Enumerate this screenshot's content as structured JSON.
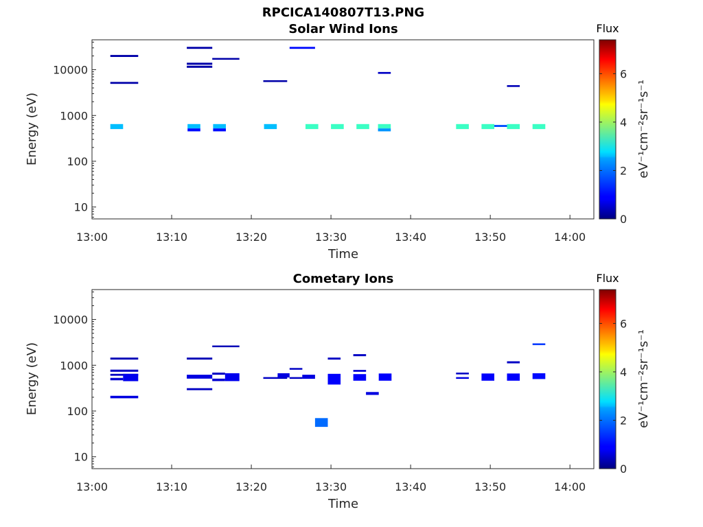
{
  "figure": {
    "title": "RPCICA140807T13.PNG"
  },
  "colorbar": {
    "title": "Flux",
    "unit_label": "eV⁻¹cm⁻²sr⁻¹s⁻¹",
    "min": 0,
    "max": 7.4,
    "ticks": [
      "0",
      "2",
      "4",
      "6"
    ],
    "colormap": "jet"
  },
  "chart_data": [
    {
      "type": "heatmap",
      "title": "Solar Wind Ions",
      "xlabel": "Time",
      "ylabel": "Energy (eV)",
      "x_ticks": [
        "13:00",
        "13:10",
        "13:20",
        "13:30",
        "13:40",
        "13:50",
        "14:00"
      ],
      "xlim_minutes": [
        0,
        63
      ],
      "y_scale": "log",
      "ylim": [
        5.5,
        45000
      ],
      "y_ticks": [
        "10",
        "100",
        "1000",
        "10000"
      ],
      "cells": [
        {
          "t0": 2.3,
          "t1": 5.8,
          "e0": 19000,
          "e1": 21000,
          "flux": 0.3
        },
        {
          "t0": 2.3,
          "t1": 5.8,
          "e0": 4900,
          "e1": 5400,
          "flux": 0.3
        },
        {
          "t0": 2.3,
          "t1": 3.9,
          "e0": 505,
          "e1": 650,
          "flux": 2.3
        },
        {
          "t0": 11.9,
          "t1": 15.1,
          "e0": 28500,
          "e1": 31500,
          "flux": 0.3
        },
        {
          "t0": 11.9,
          "t1": 15.1,
          "e0": 12800,
          "e1": 14200,
          "flux": 0.3
        },
        {
          "t0": 11.9,
          "t1": 15.1,
          "e0": 11000,
          "e1": 12200,
          "flux": 0.3
        },
        {
          "t0": 12.0,
          "t1": 13.6,
          "e0": 520,
          "e1": 650,
          "flux": 2.3
        },
        {
          "t0": 12.0,
          "t1": 13.6,
          "e0": 450,
          "e1": 520,
          "flux": 1.0
        },
        {
          "t0": 15.1,
          "t1": 18.5,
          "e0": 16500,
          "e1": 18000,
          "flux": 0.3
        },
        {
          "t0": 15.2,
          "t1": 16.8,
          "e0": 520,
          "e1": 650,
          "flux": 2.3
        },
        {
          "t0": 15.2,
          "t1": 16.8,
          "e0": 450,
          "e1": 520,
          "flux": 1.0
        },
        {
          "t0": 21.5,
          "t1": 24.5,
          "e0": 5400,
          "e1": 5900,
          "flux": 0.3
        },
        {
          "t0": 21.6,
          "t1": 23.2,
          "e0": 505,
          "e1": 650,
          "flux": 2.3
        },
        {
          "t0": 24.8,
          "t1": 28.0,
          "e0": 28500,
          "e1": 31500,
          "flux": 1.0
        },
        {
          "t0": 26.8,
          "t1": 28.4,
          "e0": 505,
          "e1": 650,
          "flux": 3.2
        },
        {
          "t0": 30.0,
          "t1": 31.6,
          "e0": 505,
          "e1": 650,
          "flux": 3.2
        },
        {
          "t0": 33.2,
          "t1": 34.8,
          "e0": 505,
          "e1": 650,
          "flux": 3.2
        },
        {
          "t0": 35.9,
          "t1": 37.5,
          "e0": 8100,
          "e1": 8900,
          "flux": 0.5
        },
        {
          "t0": 35.9,
          "t1": 37.5,
          "e0": 520,
          "e1": 650,
          "flux": 3.2
        },
        {
          "t0": 35.9,
          "t1": 37.5,
          "e0": 450,
          "e1": 520,
          "flux": 2.0
        },
        {
          "t0": 45.7,
          "t1": 47.3,
          "e0": 505,
          "e1": 650,
          "flux": 3.2
        },
        {
          "t0": 48.9,
          "t1": 50.5,
          "e0": 505,
          "e1": 650,
          "flux": 3.2
        },
        {
          "t0": 50.5,
          "t1": 52.1,
          "e0": 560,
          "e1": 620,
          "flux": 1.5
        },
        {
          "t0": 52.1,
          "t1": 53.7,
          "e0": 4200,
          "e1": 4600,
          "flux": 0.4
        },
        {
          "t0": 52.1,
          "t1": 53.7,
          "e0": 505,
          "e1": 650,
          "flux": 3.2
        },
        {
          "t0": 55.3,
          "t1": 56.9,
          "e0": 505,
          "e1": 650,
          "flux": 3.2
        }
      ]
    },
    {
      "type": "heatmap",
      "title": "Cometary Ions",
      "xlabel": "Time",
      "ylabel": "Energy (eV)",
      "x_ticks": [
        "13:00",
        "13:10",
        "13:20",
        "13:30",
        "13:40",
        "13:50",
        "14:00"
      ],
      "xlim_minutes": [
        0,
        63
      ],
      "y_scale": "log",
      "ylim": [
        5.5,
        45000
      ],
      "y_ticks": [
        "10",
        "100",
        "1000",
        "10000"
      ],
      "cells": [
        {
          "t0": 2.3,
          "t1": 5.8,
          "e0": 1330,
          "e1": 1470,
          "flux": 0.4
        },
        {
          "t0": 2.3,
          "t1": 5.8,
          "e0": 720,
          "e1": 800,
          "flux": 0.5
        },
        {
          "t0": 2.3,
          "t1": 5.8,
          "e0": 590,
          "e1": 650,
          "flux": 0.5
        },
        {
          "t0": 2.3,
          "t1": 3.9,
          "e0": 470,
          "e1": 530,
          "flux": 0.6
        },
        {
          "t0": 3.9,
          "t1": 5.8,
          "e0": 450,
          "e1": 650,
          "flux": 0.8
        },
        {
          "t0": 2.3,
          "t1": 5.8,
          "e0": 190,
          "e1": 215,
          "flux": 0.7
        },
        {
          "t0": 11.9,
          "t1": 15.1,
          "e0": 1330,
          "e1": 1470,
          "flux": 0.4
        },
        {
          "t0": 11.9,
          "t1": 15.1,
          "e0": 510,
          "e1": 620,
          "flux": 0.7
        },
        {
          "t0": 11.9,
          "t1": 15.1,
          "e0": 285,
          "e1": 315,
          "flux": 0.5
        },
        {
          "t0": 15.1,
          "t1": 18.5,
          "e0": 2500,
          "e1": 2700,
          "flux": 0.4
        },
        {
          "t0": 15.1,
          "t1": 16.7,
          "e0": 620,
          "e1": 690,
          "flux": 0.5
        },
        {
          "t0": 15.1,
          "t1": 16.7,
          "e0": 450,
          "e1": 510,
          "flux": 0.6
        },
        {
          "t0": 16.7,
          "t1": 18.5,
          "e0": 450,
          "e1": 670,
          "flux": 0.8
        },
        {
          "t0": 21.5,
          "t1": 24.5,
          "e0": 505,
          "e1": 550,
          "flux": 0.5
        },
        {
          "t0": 23.3,
          "t1": 24.8,
          "e0": 540,
          "e1": 670,
          "flux": 0.7
        },
        {
          "t0": 24.8,
          "t1": 26.4,
          "e0": 800,
          "e1": 870,
          "flux": 0.5
        },
        {
          "t0": 24.8,
          "t1": 26.4,
          "e0": 505,
          "e1": 550,
          "flux": 0.5
        },
        {
          "t0": 26.4,
          "t1": 28.0,
          "e0": 505,
          "e1": 620,
          "flux": 0.7
        },
        {
          "t0": 28.0,
          "t1": 29.6,
          "e0": 45,
          "e1": 70,
          "flux": 1.7
        },
        {
          "t0": 29.6,
          "t1": 31.2,
          "e0": 1330,
          "e1": 1470,
          "flux": 0.5
        },
        {
          "t0": 29.6,
          "t1": 31.2,
          "e0": 380,
          "e1": 650,
          "flux": 0.9
        },
        {
          "t0": 32.8,
          "t1": 34.4,
          "e0": 1580,
          "e1": 1750,
          "flux": 0.5
        },
        {
          "t0": 32.8,
          "t1": 34.4,
          "e0": 720,
          "e1": 790,
          "flux": 0.6
        },
        {
          "t0": 32.8,
          "t1": 34.4,
          "e0": 460,
          "e1": 640,
          "flux": 0.9
        },
        {
          "t0": 34.4,
          "t1": 36.0,
          "e0": 225,
          "e1": 260,
          "flux": 0.7
        },
        {
          "t0": 36.0,
          "t1": 37.6,
          "e0": 460,
          "e1": 660,
          "flux": 0.9
        },
        {
          "t0": 45.7,
          "t1": 47.3,
          "e0": 630,
          "e1": 690,
          "flux": 0.5
        },
        {
          "t0": 45.7,
          "t1": 47.3,
          "e0": 505,
          "e1": 550,
          "flux": 0.7
        },
        {
          "t0": 48.9,
          "t1": 50.5,
          "e0": 460,
          "e1": 660,
          "flux": 0.9
        },
        {
          "t0": 52.1,
          "t1": 53.7,
          "e0": 1100,
          "e1": 1220,
          "flux": 0.5
        },
        {
          "t0": 52.1,
          "t1": 53.7,
          "e0": 460,
          "e1": 660,
          "flux": 0.9
        },
        {
          "t0": 55.3,
          "t1": 56.9,
          "e0": 2800,
          "e1": 3000,
          "flux": 1.3
        },
        {
          "t0": 55.3,
          "t1": 56.9,
          "e0": 500,
          "e1": 670,
          "flux": 1.0
        }
      ]
    }
  ]
}
